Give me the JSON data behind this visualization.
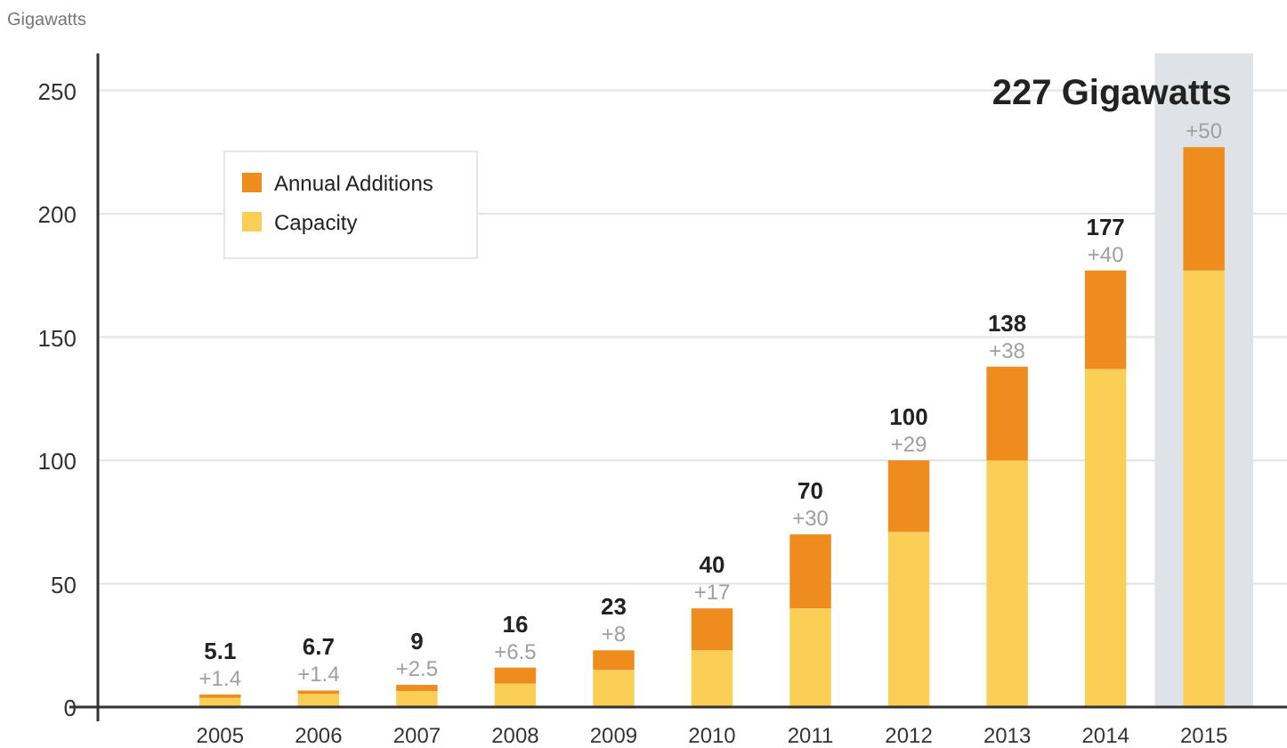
{
  "chart_data": {
    "type": "bar",
    "ylabel": "Gigawatts",
    "stacked": true,
    "categories": [
      "2005",
      "2006",
      "2007",
      "2008",
      "2009",
      "2010",
      "2011",
      "2012",
      "2013",
      "2014",
      "2015"
    ],
    "series": [
      {
        "name": "Capacity",
        "color": "#fbcf55",
        "values": [
          3.7,
          5.3,
          6.5,
          9.5,
          15,
          23,
          40,
          71,
          100,
          137,
          177
        ]
      },
      {
        "name": "Annual Additions",
        "color": "#ef8c1e",
        "values": [
          1.4,
          1.4,
          2.5,
          6.5,
          8,
          17,
          30,
          29,
          38,
          40,
          50
        ],
        "value_labels": [
          "+1.4",
          "+1.4",
          "+2.5",
          "+6.5",
          "+8",
          "+17",
          "+30",
          "+29",
          "+38",
          "+40",
          "+50"
        ]
      }
    ],
    "totals": [
      "5.1",
      "6.7",
      "9",
      "16",
      "23",
      "40",
      "70",
      "100",
      "138",
      "177",
      "227 Gigawatts"
    ],
    "ylim": [
      0,
      265
    ],
    "yticks": [
      0,
      50,
      100,
      150,
      200,
      250
    ],
    "grid": "y",
    "legend": "top left",
    "bands": [
      {
        "axis": "x",
        "from": "2015",
        "to": "2015",
        "color": "#dfe3e7"
      }
    ]
  }
}
